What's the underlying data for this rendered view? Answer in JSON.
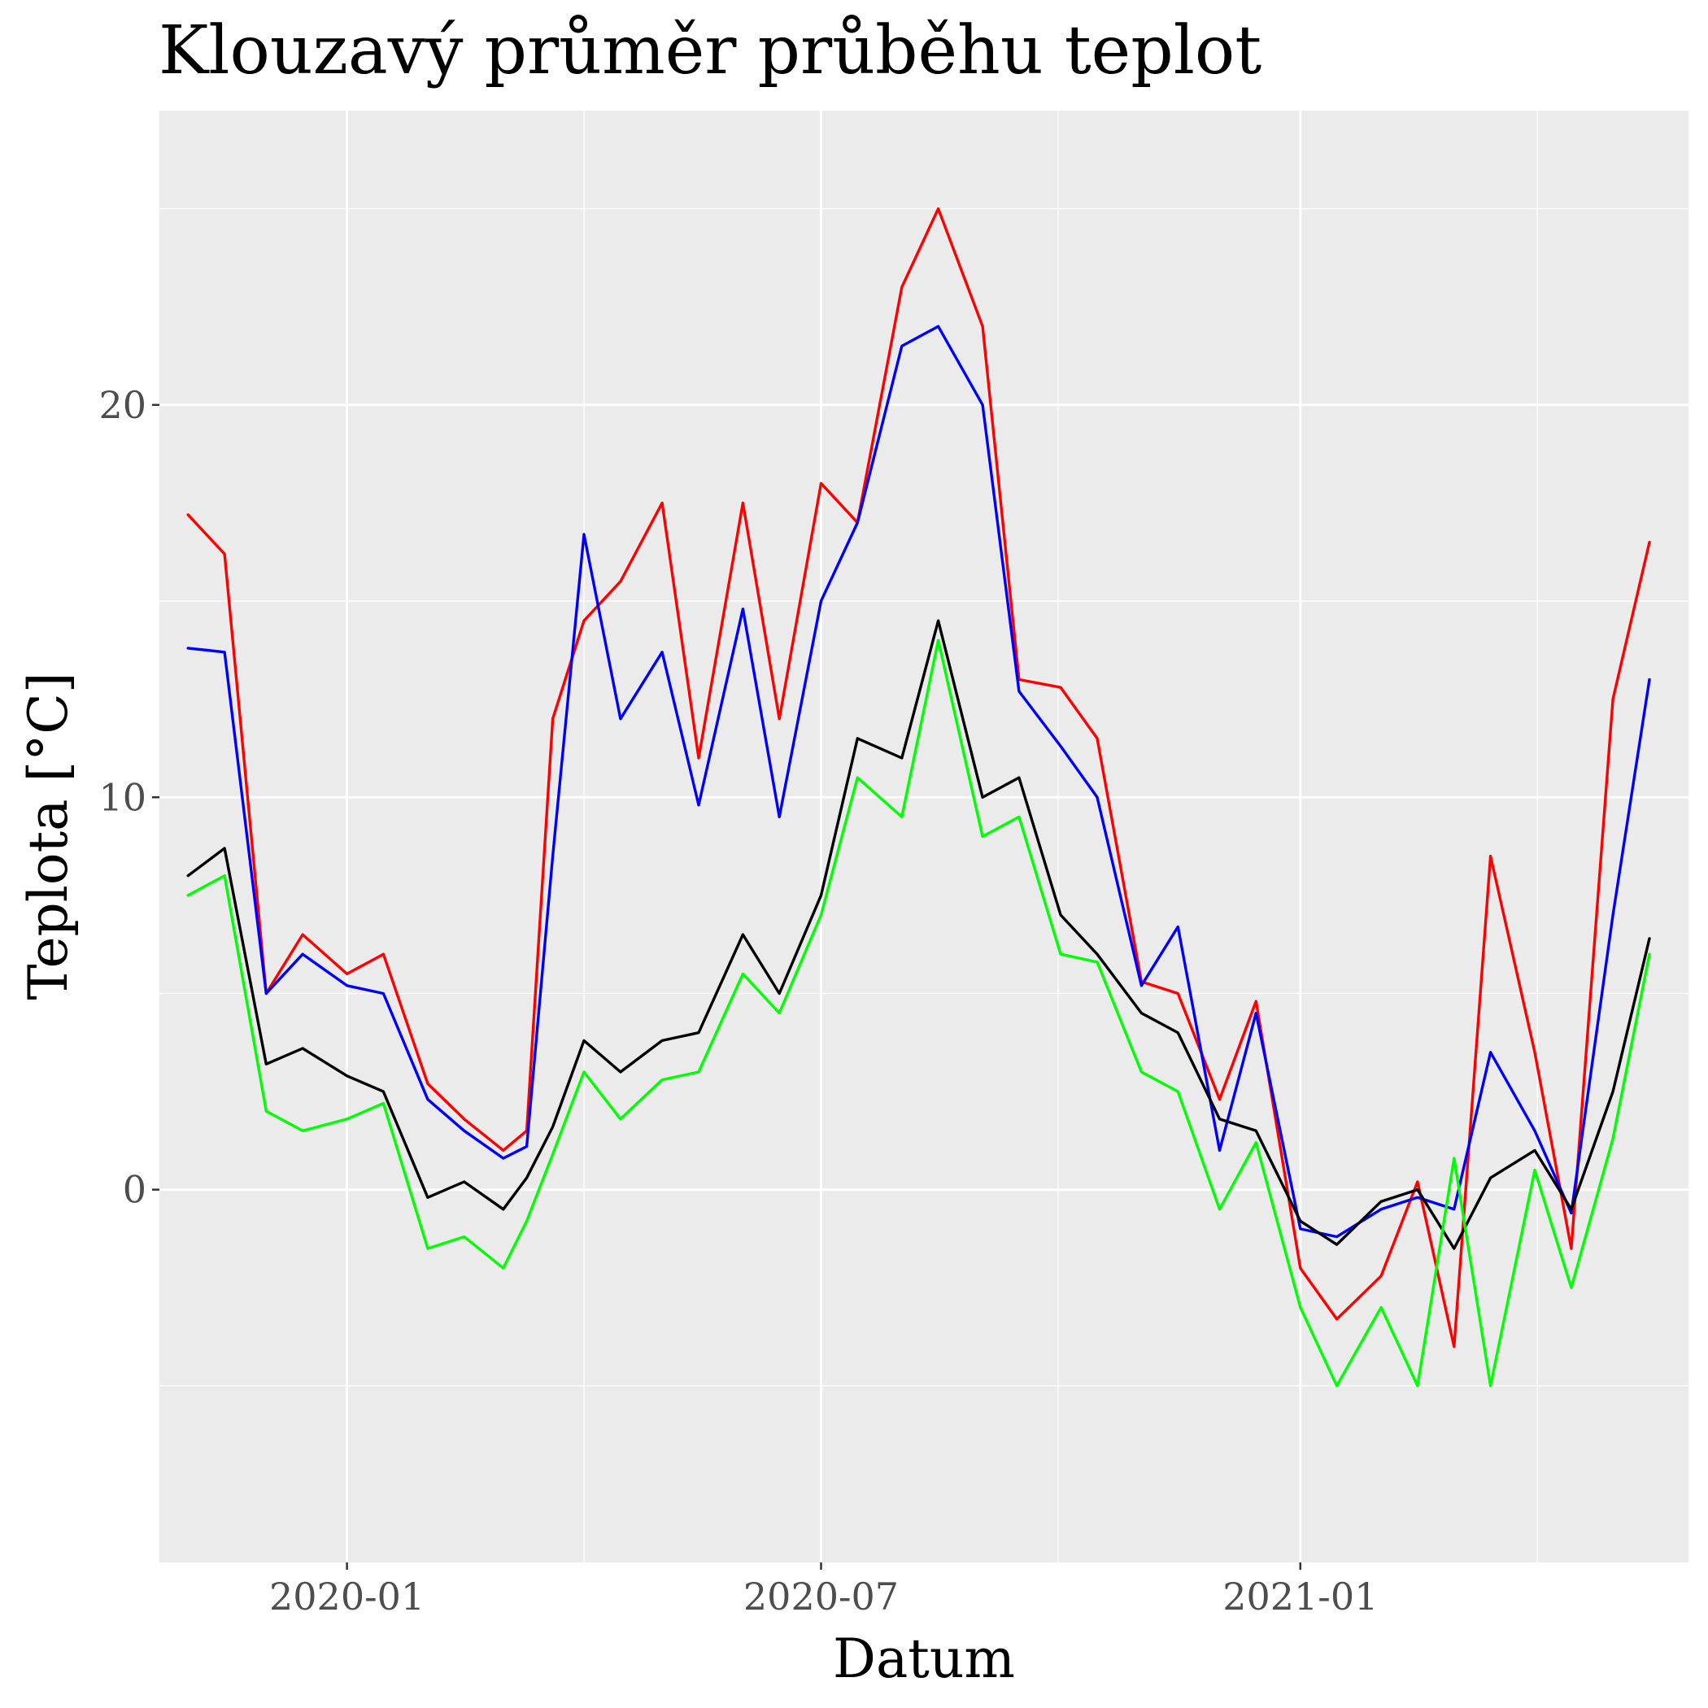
{
  "chart_data": {
    "type": "line",
    "title": "Klouzavý průměr průběhu teplot",
    "xlabel": "Datum",
    "ylabel": "Teplota [°C]",
    "x_ticks": [
      "2020-01",
      "2020-07",
      "2021-01"
    ],
    "y_ticks": [
      0,
      10,
      20
    ],
    "xlim": [
      "2019-10-21",
      "2021-05-30"
    ],
    "ylim": [
      -9.5,
      27.5
    ],
    "grid": true,
    "legend": "none",
    "x": [
      "2019-11-01",
      "2019-11-15",
      "2019-12-01",
      "2019-12-15",
      "2020-01-01",
      "2020-01-15",
      "2020-02-01",
      "2020-02-15",
      "2020-03-01",
      "2020-03-10",
      "2020-03-20",
      "2020-04-01",
      "2020-04-15",
      "2020-05-01",
      "2020-05-15",
      "2020-06-01",
      "2020-06-15",
      "2020-07-01",
      "2020-07-15",
      "2020-08-01",
      "2020-08-15",
      "2020-09-01",
      "2020-09-15",
      "2020-10-01",
      "2020-10-15",
      "2020-11-01",
      "2020-11-15",
      "2020-12-01",
      "2020-12-15",
      "2021-01-01",
      "2021-01-15",
      "2021-02-01",
      "2021-02-15",
      "2021-03-01",
      "2021-03-15",
      "2021-04-01",
      "2021-04-15",
      "2021-05-01",
      "2021-05-15"
    ],
    "series": [
      {
        "color": "#ff0000",
        "values": [
          17.2,
          16.2,
          5.0,
          6.5,
          5.5,
          6.0,
          2.7,
          1.8,
          1.0,
          1.5,
          12.0,
          14.5,
          15.5,
          17.5,
          11.0,
          17.5,
          12.0,
          18.0,
          17.0,
          23.0,
          25.0,
          22.0,
          13.0,
          12.8,
          11.5,
          5.3,
          5.0,
          2.3,
          4.8,
          -2.0,
          -3.3,
          -2.2,
          0.2,
          -4.0,
          8.5,
          3.5,
          -1.5,
          12.5,
          16.5
        ]
      },
      {
        "color": "#0000ff",
        "values": [
          13.8,
          13.7,
          5.0,
          6.0,
          5.2,
          5.0,
          2.3,
          1.5,
          0.8,
          1.1,
          8.5,
          16.7,
          12.0,
          13.7,
          9.8,
          14.8,
          9.5,
          15.0,
          17.0,
          21.5,
          22.0,
          20.0,
          12.7,
          11.3,
          10.0,
          5.2,
          6.7,
          1.0,
          4.5,
          -1.0,
          -1.2,
          -0.5,
          -0.2,
          -0.5,
          3.5,
          1.5,
          -0.6,
          7.0,
          13.0
        ]
      },
      {
        "color": "#000000",
        "values": [
          8.0,
          8.7,
          3.2,
          3.6,
          2.9,
          2.5,
          -0.2,
          0.2,
          -0.5,
          0.3,
          1.6,
          3.8,
          3.0,
          3.8,
          4.0,
          6.5,
          5.0,
          7.5,
          11.5,
          11.0,
          14.5,
          10.0,
          10.5,
          7.0,
          6.0,
          4.5,
          4.0,
          1.8,
          1.5,
          -0.8,
          -1.4,
          -0.3,
          0.0,
          -1.5,
          0.3,
          1.0,
          -0.5,
          2.5,
          6.4
        ]
      },
      {
        "color": "#00ff00",
        "values": [
          7.5,
          8.0,
          2.0,
          1.5,
          1.8,
          2.2,
          -1.5,
          -1.2,
          -2.0,
          -0.8,
          0.9,
          3.0,
          1.8,
          2.8,
          3.0,
          5.5,
          4.5,
          7.0,
          10.5,
          9.5,
          14.0,
          9.0,
          9.5,
          6.0,
          5.8,
          3.0,
          2.5,
          -0.5,
          1.2,
          -3.0,
          -5.0,
          -3.0,
          -5.0,
          0.8,
          -5.0,
          0.5,
          -2.5,
          1.3,
          6.0
        ]
      }
    ]
  }
}
